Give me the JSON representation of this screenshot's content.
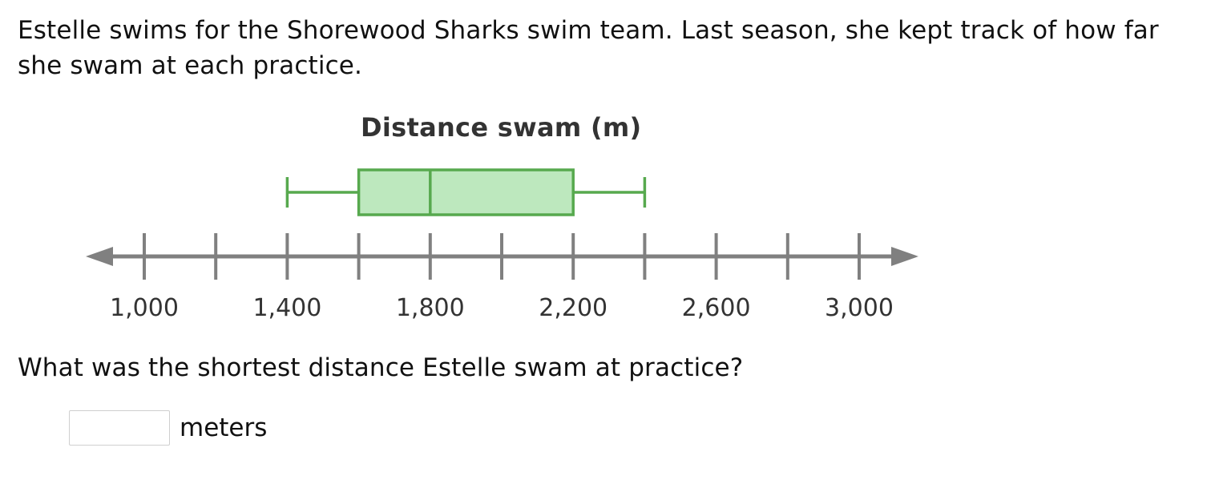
{
  "problem": {
    "intro": "Estelle swims for the Shorewood Sharks swim team. Last season, she kept track of how far she swam at each practice.",
    "question": "What was the shortest distance Estelle swam at practice?",
    "answer": {
      "value": "",
      "placeholder": "",
      "unit": "meters"
    }
  },
  "chart_data": {
    "type": "box",
    "title": "Distance swam (m)",
    "xlabel": "",
    "ylabel": "",
    "xlim": [
      800,
      3200
    ],
    "ticks": [
      1000,
      1200,
      1400,
      1600,
      1800,
      2000,
      2200,
      2400,
      2600,
      2800,
      3000
    ],
    "tick_labels": [
      {
        "value": 1000,
        "label": "1,000"
      },
      {
        "value": 1400,
        "label": "1,400"
      },
      {
        "value": 1800,
        "label": "1,800"
      },
      {
        "value": 2200,
        "label": "2,200"
      },
      {
        "value": 2600,
        "label": "2,600"
      },
      {
        "value": 3000,
        "label": "3,000"
      }
    ],
    "box": {
      "min": 1400,
      "q1": 1600,
      "median": 1800,
      "q3": 2200,
      "max": 2400
    },
    "colors": {
      "box_fill": "#bde8be",
      "box_stroke": "#57a94e",
      "axis": "#808080"
    }
  }
}
